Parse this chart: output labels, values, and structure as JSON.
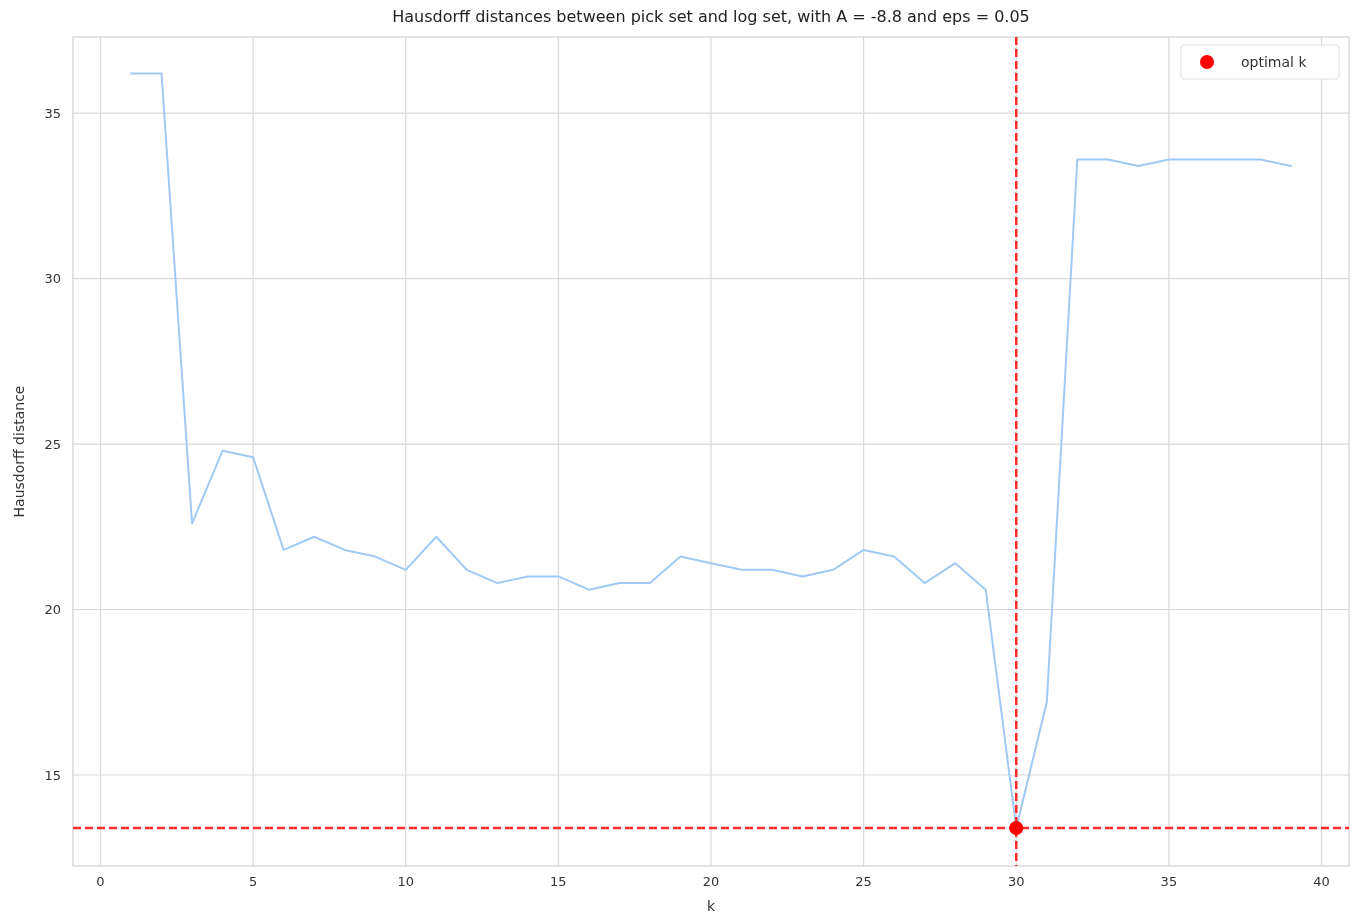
{
  "chart_data": {
    "type": "line",
    "title": "Hausdorff distances between pick set and log set, with A = -8.8 and eps = 0.05",
    "xlabel": "k",
    "ylabel": "Hausdorff distance",
    "xlim": [
      -0.9,
      40.9
    ],
    "xticks": [
      0,
      5,
      10,
      15,
      20,
      25,
      30,
      35,
      40
    ],
    "ylim": [
      12.25,
      37.3
    ],
    "yticks": [
      15,
      20,
      25,
      30,
      35
    ],
    "grid": true,
    "legend": "top right",
    "series": [
      {
        "color": "#a1c9f4",
        "x": [
          1,
          2,
          3,
          4,
          5,
          6,
          7,
          8,
          9,
          10,
          11,
          12,
          13,
          14,
          15,
          16,
          17,
          18,
          19,
          20,
          21,
          22,
          23,
          24,
          25,
          26,
          27,
          28,
          29,
          30,
          31,
          32,
          33,
          34,
          35,
          36,
          37,
          38,
          39
        ],
        "values": [
          36.2,
          36.2,
          22.6,
          24.8,
          24.6,
          21.8,
          22.2,
          21.8,
          21.6,
          21.2,
          22.2,
          21.2,
          20.8,
          21.0,
          21.0,
          20.6,
          20.8,
          20.8,
          21.6,
          21.4,
          21.2,
          21.2,
          21.0,
          21.2,
          21.8,
          21.6,
          20.8,
          21.4,
          20.6,
          13.4,
          17.2,
          33.6,
          33.6,
          33.4,
          33.6,
          33.6,
          33.6,
          33.6,
          33.4
        ]
      },
      {
        "type": "scatter",
        "name": "optimal k",
        "color": "#ff0000",
        "marker": "circle",
        "x": [
          30
        ],
        "values": [
          13.4
        ]
      }
    ],
    "ref_lines": [
      {
        "axis": "x",
        "value": 30,
        "color": "#ff2a2a",
        "line_style": "dashed"
      },
      {
        "axis": "y",
        "value": 13.4,
        "color": "#ff2a2a",
        "line_style": "dashed"
      }
    ]
  }
}
